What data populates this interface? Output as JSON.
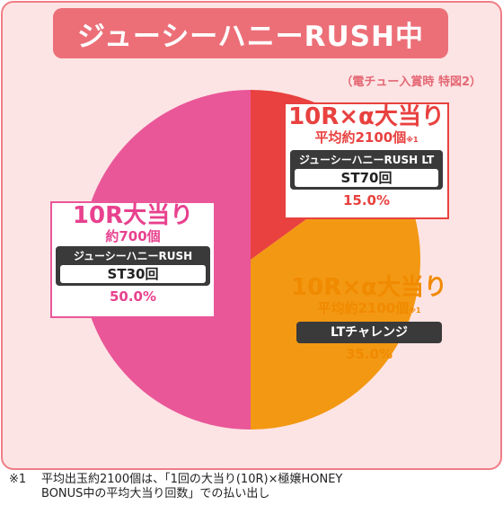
{
  "header": {
    "title": "ジューシーハニーRUSH中",
    "subtitle": "（電チュー入賞時 特図2）"
  },
  "chart_data": {
    "type": "pie",
    "title": "ジューシーハニーRUSH中",
    "slices": [
      {
        "label": "10R×α大当り",
        "payout": "平均約2100個",
        "mode": "ジューシーハニーRUSH LT",
        "st": "ST70回",
        "value": 15.0,
        "value_label": "15.0%",
        "color": "#e8413f"
      },
      {
        "label": "10R×α大当り",
        "payout": "平均約2100個",
        "mode": "LTチャレンジ",
        "value": 35.0,
        "value_label": "35.0%",
        "color": "#f39812"
      },
      {
        "label": "10R大当り",
        "payout": "約700個",
        "mode": "ジューシーハニーRUSH",
        "st": "ST30回",
        "value": 50.0,
        "value_label": "50.0%",
        "color": "#e95799"
      }
    ]
  },
  "note_mark": "※1",
  "footnote": {
    "mark": "※1",
    "line1": "平均出玉約2100個は、「1回の大当り(10R)×極嬢HONEY",
    "line2": "BONUS中の平均大当り回数」での払い出し"
  },
  "colors": {
    "background": "#fde4e4",
    "border": "#ef7d86",
    "title_bg": "#ec6f78"
  }
}
